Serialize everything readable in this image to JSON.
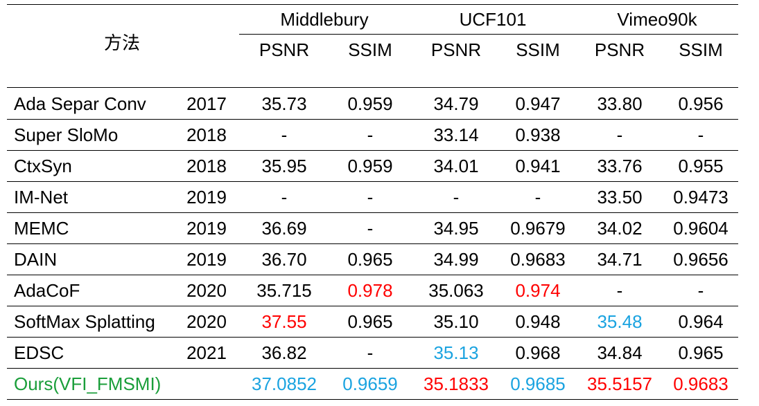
{
  "table": {
    "method_header": "方法",
    "datasets": [
      {
        "name": "Middlebury",
        "metrics": [
          "PSNR",
          "SSIM"
        ]
      },
      {
        "name": "UCF101",
        "metrics": [
          "PSNR",
          "SSIM"
        ]
      },
      {
        "name": "Vimeo90k",
        "metrics": [
          "PSNR",
          "SSIM"
        ]
      }
    ],
    "colors": {
      "default": "#000000",
      "best": "#ff0000",
      "second": "#1aa3e0",
      "ours_method": "#1a9e3a"
    },
    "rows": [
      {
        "method": "Ada Separ Conv",
        "year": "2017",
        "cells": [
          {
            "v": "35.73"
          },
          {
            "v": "0.959"
          },
          {
            "v": "34.79"
          },
          {
            "v": "0.947"
          },
          {
            "v": "33.80"
          },
          {
            "v": "0.956"
          }
        ]
      },
      {
        "method": "Super SloMo",
        "year": "2018",
        "cells": [
          {
            "v": "-"
          },
          {
            "v": "-"
          },
          {
            "v": "33.14"
          },
          {
            "v": "0.938"
          },
          {
            "v": "-"
          },
          {
            "v": "-"
          }
        ]
      },
      {
        "method": "CtxSyn",
        "year": "2018",
        "cells": [
          {
            "v": "35.95"
          },
          {
            "v": "0.959"
          },
          {
            "v": "34.01"
          },
          {
            "v": "0.941"
          },
          {
            "v": "33.76"
          },
          {
            "v": "0.955"
          }
        ]
      },
      {
        "method": "IM-Net",
        "year": "2019",
        "cells": [
          {
            "v": "-"
          },
          {
            "v": "-"
          },
          {
            "v": "-"
          },
          {
            "v": "-"
          },
          {
            "v": "33.50"
          },
          {
            "v": "0.9473"
          }
        ]
      },
      {
        "method": "MEMC",
        "year": "2019",
        "cells": [
          {
            "v": "36.69"
          },
          {
            "v": "-"
          },
          {
            "v": "34.95"
          },
          {
            "v": "0.9679"
          },
          {
            "v": "34.02"
          },
          {
            "v": "0.9604"
          }
        ]
      },
      {
        "method": "DAIN",
        "year": "2019",
        "cells": [
          {
            "v": "36.70"
          },
          {
            "v": "0.965"
          },
          {
            "v": "34.99"
          },
          {
            "v": "0.9683"
          },
          {
            "v": "34.71"
          },
          {
            "v": "0.9656"
          }
        ]
      },
      {
        "method": "AdaCoF",
        "year": "2020",
        "cells": [
          {
            "v": "35.715"
          },
          {
            "v": "0.978",
            "c": "best"
          },
          {
            "v": "35.063"
          },
          {
            "v": "0.974",
            "c": "best"
          },
          {
            "v": "-"
          },
          {
            "v": "-"
          }
        ]
      },
      {
        "method": "SoftMax Splatting",
        "year": "2020",
        "cells": [
          {
            "v": "37.55",
            "c": "best"
          },
          {
            "v": "0.965"
          },
          {
            "v": "35.10"
          },
          {
            "v": "0.948"
          },
          {
            "v": "35.48",
            "c": "second"
          },
          {
            "v": "0.964"
          }
        ]
      },
      {
        "method": "EDSC",
        "year": "2021",
        "cells": [
          {
            "v": "36.82"
          },
          {
            "v": "-"
          },
          {
            "v": "35.13",
            "c": "second"
          },
          {
            "v": "0.968"
          },
          {
            "v": "34.84"
          },
          {
            "v": "0.965"
          }
        ]
      },
      {
        "method": "Ours(VFI_FMSMI)",
        "year": "",
        "method_color": "ours_method",
        "cells": [
          {
            "v": "37.0852",
            "c": "second"
          },
          {
            "v": "0.9659",
            "c": "second"
          },
          {
            "v": "35.1833",
            "c": "best"
          },
          {
            "v": "0.9685",
            "c": "second"
          },
          {
            "v": "35.5157",
            "c": "best"
          },
          {
            "v": "0.9683",
            "c": "best"
          }
        ]
      }
    ]
  }
}
